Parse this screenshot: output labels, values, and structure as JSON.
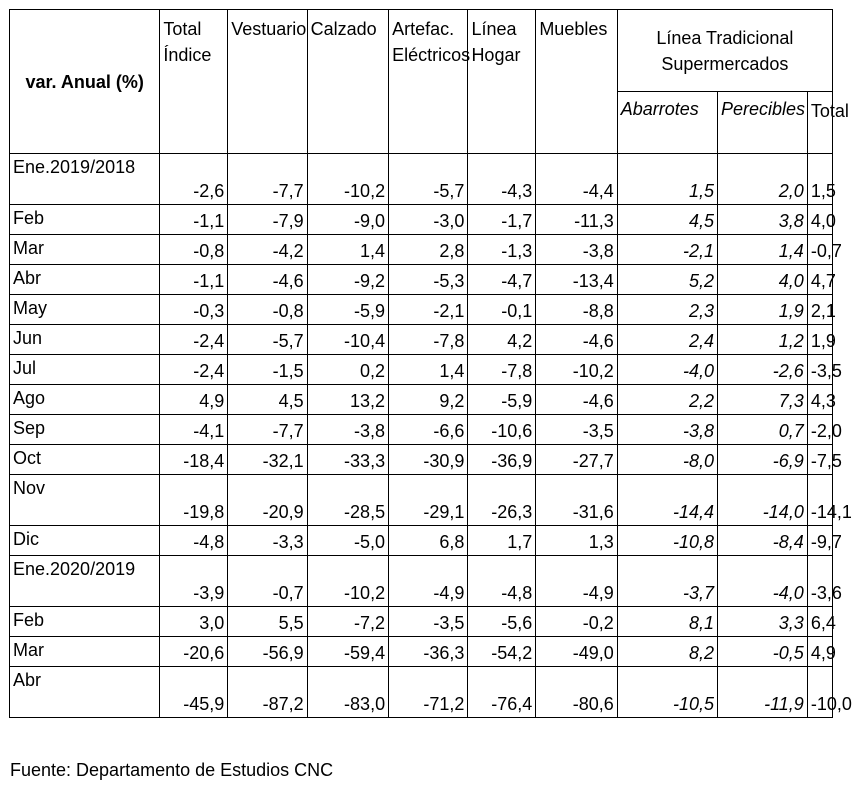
{
  "table": {
    "header": {
      "var_label": "var. Anual (%)",
      "total_indice": "Total Índice",
      "vestuario": "Vestuario",
      "calzado": "Calzado",
      "artefactos": "Artefac. Eléctricos",
      "linea_hogar": "Línea Hogar",
      "muebles": "Muebles",
      "group": "Línea Tradicional Supermercados",
      "abarrotes": "Abarrotes",
      "perecibles": "Perecibles",
      "total": "Total"
    },
    "rows": [
      {
        "label": "Ene.2019/2018",
        "v": [
          "-2,6",
          "-7,7",
          "-10,2",
          "-5,7",
          "-4,3",
          "-4,4",
          "1,5",
          "2,0",
          "1,5"
        ]
      },
      {
        "label": "Feb",
        "v": [
          "-1,1",
          "-7,9",
          "-9,0",
          "-3,0",
          "-1,7",
          "-11,3",
          "4,5",
          "3,8",
          "4,0"
        ]
      },
      {
        "label": "Mar",
        "v": [
          "-0,8",
          "-4,2",
          "1,4",
          "2,8",
          "-1,3",
          "-3,8",
          "-2,1",
          "1,4",
          "-0,7"
        ]
      },
      {
        "label": "Abr",
        "v": [
          "-1,1",
          "-4,6",
          "-9,2",
          "-5,3",
          "-4,7",
          "-13,4",
          "5,2",
          "4,0",
          "4,7"
        ]
      },
      {
        "label": "May",
        "v": [
          "-0,3",
          "-0,8",
          "-5,9",
          "-2,1",
          "-0,1",
          "-8,8",
          "2,3",
          "1,9",
          "2,1"
        ]
      },
      {
        "label": "Jun",
        "v": [
          "-2,4",
          "-5,7",
          "-10,4",
          "-7,8",
          "4,2",
          "-4,6",
          "2,4",
          "1,2",
          "1,9"
        ]
      },
      {
        "label": "Jul",
        "v": [
          "-2,4",
          "-1,5",
          "0,2",
          "1,4",
          "-7,8",
          "-10,2",
          "-4,0",
          "-2,6",
          "-3,5"
        ]
      },
      {
        "label": "Ago",
        "v": [
          "4,9",
          "4,5",
          "13,2",
          "9,2",
          "-5,9",
          "-4,6",
          "2,2",
          "7,3",
          "4,3"
        ]
      },
      {
        "label": "Sep",
        "v": [
          "-4,1",
          "-7,7",
          "-3,8",
          "-6,6",
          "-10,6",
          "-3,5",
          "-3,8",
          "0,7",
          "-2,0"
        ]
      },
      {
        "label": "Oct",
        "v": [
          "-18,4",
          "-32,1",
          "-33,3",
          "-30,9",
          "-36,9",
          "-27,7",
          "-8,0",
          "-6,9",
          "-7,5"
        ]
      },
      {
        "label": "Nov",
        "v": [
          "-19,8",
          "-20,9",
          "-28,5",
          "-29,1",
          "-26,3",
          "-31,6",
          "-14,4",
          "-14,0",
          "-14,1"
        ]
      },
      {
        "label": "Dic",
        "v": [
          "-4,8",
          "-3,3",
          "-5,0",
          "6,8",
          "1,7",
          "1,3",
          "-10,8",
          "-8,4",
          "-9,7"
        ]
      },
      {
        "label": "Ene.2020/2019",
        "v": [
          "-3,9",
          "-0,7",
          "-10,2",
          "-4,9",
          "-4,8",
          "-4,9",
          "-3,7",
          "-4,0",
          "-3,6"
        ]
      },
      {
        "label": "Feb",
        "v": [
          "3,0",
          "5,5",
          "-7,2",
          "-3,5",
          "-5,6",
          "-0,2",
          "8,1",
          "3,3",
          "6,4"
        ]
      },
      {
        "label": "Mar",
        "v": [
          "-20,6",
          "-56,9",
          "-59,4",
          "-36,3",
          "-54,2",
          "-49,0",
          "8,2",
          "-0,5",
          "4,9"
        ]
      },
      {
        "label": "Abr",
        "v": [
          "-45,9",
          "-87,2",
          "-83,0",
          "-71,2",
          "-76,4",
          "-80,6",
          "-10,5",
          "-11,9",
          "-10,0"
        ]
      }
    ]
  },
  "source": "Fuente: Departamento de Estudios CNC"
}
